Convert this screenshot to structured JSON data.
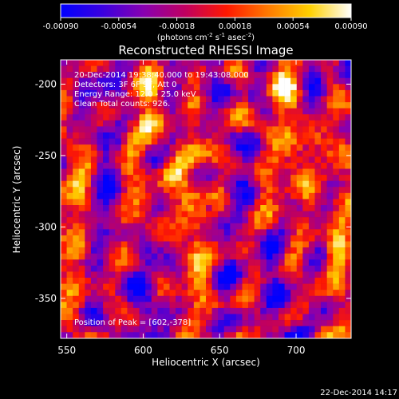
{
  "colorbar": {
    "ticks": [
      "-0.00090",
      "-0.00054",
      "-0.00018",
      "0.00018",
      "0.00054",
      "0.00090"
    ],
    "range": [
      -0.0009,
      0.0009
    ],
    "unit_prefix": "(photons cm",
    "unit_exp1": "-2",
    "unit_mid": " s",
    "unit_exp2": "-1",
    "unit_mid2": " asec",
    "unit_exp3": "-2",
    "unit_suffix": ")",
    "colors": [
      "#0000ff",
      "#3a00e0",
      "#8800b0",
      "#c00060",
      "#ff1800",
      "#ff7a00",
      "#ffd000",
      "#ffffff"
    ]
  },
  "chart_data": {
    "type": "heatmap",
    "title": "Reconstructed RHESSI Image",
    "xlabel": "Heliocentric X (arcsec)",
    "ylabel": "Heliocentric Y (arcsec)",
    "xlim": [
      546,
      736
    ],
    "ylim": [
      -378,
      -183
    ],
    "x_ticks": [
      "550",
      "600",
      "650",
      "700"
    ],
    "y_ticks": [
      "-200",
      "-250",
      "-300",
      "-350"
    ],
    "x_tick_values": [
      550,
      600,
      650,
      700
    ],
    "y_tick_values": [
      -200,
      -250,
      -300,
      -350
    ],
    "annotations": [
      "20-Dec-2014 19:38:40.000 to 19:43:08.000",
      "Detectors: 3F 6F 9F, Att 0",
      "Energy Range: 12.0 - 25.0 keV",
      "Clean    Total counts: 926.",
      "Position of Peak = [602,-378]"
    ],
    "peak": [
      602,
      -378
    ]
  },
  "footer": {
    "date": "22-Dec-2014 14:17"
  }
}
